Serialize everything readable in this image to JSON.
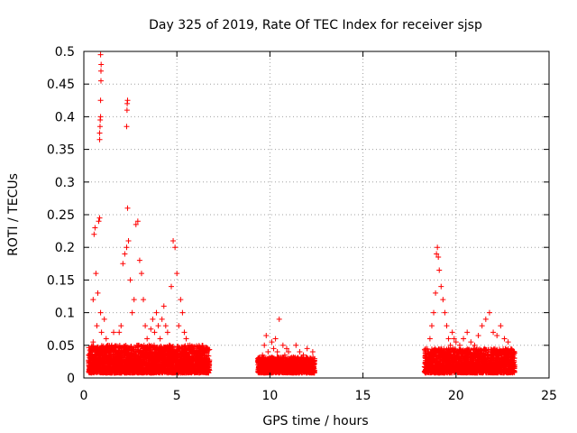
{
  "chart_data": {
    "type": "scatter",
    "title": "Day 325 of 2019, Rate Of TEC Index for receiver sjsp",
    "xlabel": "GPS time / hours",
    "ylabel": "ROTI / TECUs",
    "xlim": [
      0,
      25
    ],
    "ylim": [
      0,
      0.5
    ],
    "grid": true,
    "marker": "plus",
    "colors": {
      "series": "#ff0000",
      "grid": "#a0a0a0",
      "axis": "#000000"
    },
    "x_ticks": [
      {
        "value": 0,
        "label": "0"
      },
      {
        "value": 5,
        "label": "5"
      },
      {
        "value": 10,
        "label": "10"
      },
      {
        "value": 15,
        "label": "15"
      },
      {
        "value": 20,
        "label": "20"
      },
      {
        "value": 25,
        "label": "25"
      }
    ],
    "y_ticks": [
      {
        "value": 0,
        "label": "0"
      },
      {
        "value": 0.05,
        "label": "0.05"
      },
      {
        "value": 0.1,
        "label": "0.1"
      },
      {
        "value": 0.15,
        "label": "0.15"
      },
      {
        "value": 0.2,
        "label": "0.2"
      },
      {
        "value": 0.25,
        "label": "0.25"
      },
      {
        "value": 0.3,
        "label": "0.3"
      },
      {
        "value": 0.35,
        "label": "0.35"
      },
      {
        "value": 0.4,
        "label": "0.4"
      },
      {
        "value": 0.45,
        "label": "0.45"
      },
      {
        "value": 0.5,
        "label": "0.5"
      }
    ],
    "series": [
      {
        "name": "ROTI",
        "points": [
          [
            0.3,
            0.012
          ],
          [
            0.35,
            0.025
          ],
          [
            0.4,
            0.035
          ],
          [
            0.45,
            0.015
          ],
          [
            0.5,
            0.055
          ],
          [
            0.5,
            0.12
          ],
          [
            0.55,
            0.22
          ],
          [
            0.6,
            0.23
          ],
          [
            0.65,
            0.16
          ],
          [
            0.7,
            0.08
          ],
          [
            0.75,
            0.13
          ],
          [
            0.8,
            0.24
          ],
          [
            0.85,
            0.245
          ],
          [
            0.9,
            0.1
          ],
          [
            0.95,
            0.07
          ],
          [
            1.0,
            0.045
          ],
          [
            1.1,
            0.09
          ],
          [
            1.2,
            0.06
          ],
          [
            1.3,
            0.03
          ],
          [
            1.4,
            0.025
          ],
          [
            1.5,
            0.05
          ],
          [
            1.6,
            0.07
          ],
          [
            1.7,
            0.04
          ],
          [
            1.8,
            0.03
          ],
          [
            1.9,
            0.07
          ],
          [
            2.0,
            0.08
          ],
          [
            2.1,
            0.175
          ],
          [
            2.2,
            0.19
          ],
          [
            2.3,
            0.2
          ],
          [
            2.4,
            0.21
          ],
          [
            2.5,
            0.15
          ],
          [
            2.6,
            0.1
          ],
          [
            2.7,
            0.12
          ],
          [
            2.8,
            0.235
          ],
          [
            2.9,
            0.24
          ],
          [
            3.0,
            0.18
          ],
          [
            3.1,
            0.16
          ],
          [
            3.2,
            0.12
          ],
          [
            3.3,
            0.08
          ],
          [
            3.4,
            0.06
          ],
          [
            3.5,
            0.05
          ],
          [
            3.6,
            0.075
          ],
          [
            3.7,
            0.09
          ],
          [
            3.8,
            0.07
          ],
          [
            3.9,
            0.1
          ],
          [
            4.0,
            0.08
          ],
          [
            4.1,
            0.06
          ],
          [
            4.2,
            0.09
          ],
          [
            4.3,
            0.11
          ],
          [
            4.4,
            0.08
          ],
          [
            4.5,
            0.07
          ],
          [
            4.6,
            0.05
          ],
          [
            4.7,
            0.14
          ],
          [
            4.8,
            0.21
          ],
          [
            4.9,
            0.2
          ],
          [
            5.0,
            0.16
          ],
          [
            5.1,
            0.08
          ],
          [
            5.2,
            0.12
          ],
          [
            5.3,
            0.1
          ],
          [
            5.4,
            0.07
          ],
          [
            5.5,
            0.06
          ],
          [
            5.7,
            0.05
          ],
          [
            5.9,
            0.04
          ],
          [
            6.1,
            0.035
          ],
          [
            6.3,
            0.03
          ],
          [
            6.5,
            0.045
          ],
          [
            6.6,
            0.03
          ],
          [
            0.85,
            0.365
          ],
          [
            0.85,
            0.375
          ],
          [
            0.87,
            0.385
          ],
          [
            0.88,
            0.395
          ],
          [
            0.9,
            0.4
          ],
          [
            0.9,
            0.425
          ],
          [
            0.92,
            0.455
          ],
          [
            0.92,
            0.47
          ],
          [
            0.93,
            0.48
          ],
          [
            0.9,
            0.495
          ],
          [
            2.3,
            0.385
          ],
          [
            2.32,
            0.41
          ],
          [
            2.33,
            0.42
          ],
          [
            2.35,
            0.425
          ],
          [
            2.35,
            0.26
          ],
          [
            9.5,
            0.02
          ],
          [
            9.6,
            0.035
          ],
          [
            9.7,
            0.05
          ],
          [
            9.8,
            0.065
          ],
          [
            9.9,
            0.04
          ],
          [
            10.0,
            0.03
          ],
          [
            10.1,
            0.055
          ],
          [
            10.2,
            0.045
          ],
          [
            10.3,
            0.06
          ],
          [
            10.4,
            0.04
          ],
          [
            10.5,
            0.09
          ],
          [
            10.6,
            0.03
          ],
          [
            10.7,
            0.05
          ],
          [
            10.8,
            0.035
          ],
          [
            10.9,
            0.045
          ],
          [
            11.0,
            0.04
          ],
          [
            11.2,
            0.03
          ],
          [
            11.4,
            0.05
          ],
          [
            11.6,
            0.04
          ],
          [
            11.8,
            0.035
          ],
          [
            12.0,
            0.045
          ],
          [
            12.2,
            0.03
          ],
          [
            12.3,
            0.04
          ],
          [
            18.4,
            0.02
          ],
          [
            18.5,
            0.04
          ],
          [
            18.6,
            0.06
          ],
          [
            18.7,
            0.08
          ],
          [
            18.8,
            0.1
          ],
          [
            18.9,
            0.13
          ],
          [
            18.95,
            0.19
          ],
          [
            19.0,
            0.2
          ],
          [
            19.05,
            0.185
          ],
          [
            19.1,
            0.165
          ],
          [
            19.2,
            0.14
          ],
          [
            19.3,
            0.12
          ],
          [
            19.4,
            0.1
          ],
          [
            19.5,
            0.08
          ],
          [
            19.6,
            0.06
          ],
          [
            19.7,
            0.05
          ],
          [
            19.8,
            0.07
          ],
          [
            19.9,
            0.06
          ],
          [
            20.0,
            0.055
          ],
          [
            20.2,
            0.05
          ],
          [
            20.4,
            0.06
          ],
          [
            20.6,
            0.07
          ],
          [
            20.8,
            0.055
          ],
          [
            21.0,
            0.05
          ],
          [
            21.2,
            0.065
          ],
          [
            21.4,
            0.08
          ],
          [
            21.6,
            0.09
          ],
          [
            21.8,
            0.1
          ],
          [
            22.0,
            0.07
          ],
          [
            22.2,
            0.065
          ],
          [
            22.4,
            0.08
          ],
          [
            22.6,
            0.06
          ],
          [
            22.8,
            0.055
          ],
          [
            23.0,
            0.04
          ],
          [
            23.1,
            0.02
          ]
        ]
      }
    ],
    "dense_regions": [
      {
        "x_start": 0.25,
        "x_end": 6.75,
        "y_max": 0.05,
        "count": 2600
      },
      {
        "x_start": 9.35,
        "x_end": 12.4,
        "y_max": 0.032,
        "count": 1000
      },
      {
        "x_start": 18.3,
        "x_end": 23.15,
        "y_max": 0.045,
        "count": 1700
      }
    ]
  }
}
